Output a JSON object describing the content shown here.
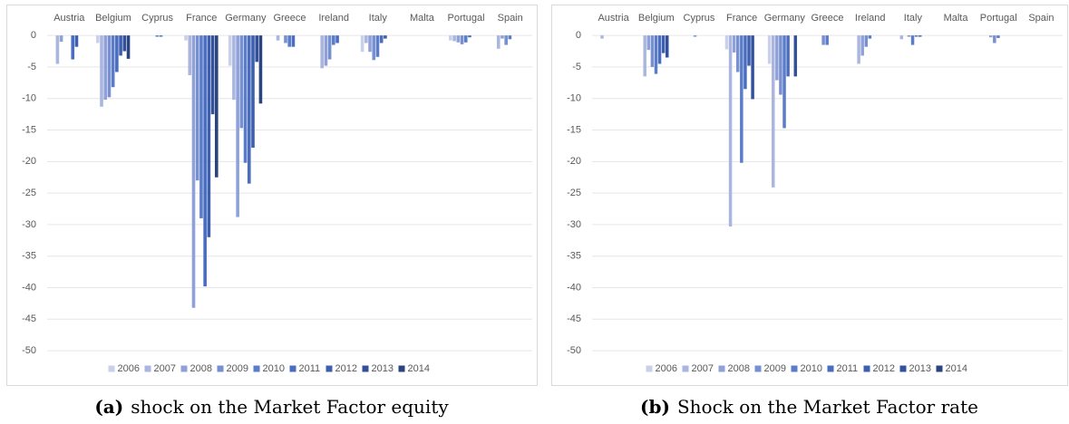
{
  "chart_data": [
    {
      "type": "bar",
      "caption_label": "(a)",
      "caption": "shock on the Market Factor equity",
      "categories": [
        "Austria",
        "Belgium",
        "Cyprus",
        "France",
        "Germany",
        "Greece",
        "Ireland",
        "Italy",
        "Malta",
        "Portugal",
        "Spain"
      ],
      "ylim": [
        -52,
        1.6
      ],
      "yticks": [
        0,
        -5,
        -10,
        -15,
        -20,
        -25,
        -30,
        -35,
        -40,
        -45,
        -50
      ],
      "grid": true,
      "legend": "bottom",
      "series": [
        {
          "name": "2006",
          "color": "#c9d0ea",
          "values": [
            0,
            -1.2,
            0,
            -0.8,
            -4.8,
            0,
            0,
            -2.6,
            0,
            -0.8,
            0
          ]
        },
        {
          "name": "2007",
          "color": "#aab6df",
          "values": [
            -4.5,
            -11.3,
            0,
            -6.3,
            -10.2,
            -0.8,
            -5.2,
            -1.2,
            0,
            -0.9,
            -2.1
          ]
        },
        {
          "name": "2008",
          "color": "#8fa1d6",
          "values": [
            -1,
            -10.2,
            0,
            -43.2,
            -28.8,
            0,
            -4.8,
            -2.6,
            0,
            -1.1,
            -0.5
          ]
        },
        {
          "name": "2009",
          "color": "#7690d1",
          "values": [
            0,
            -9.8,
            0,
            -23,
            -14.7,
            -1.2,
            -3.8,
            -3.9,
            0,
            -1.4,
            -1.5
          ]
        },
        {
          "name": "2010",
          "color": "#5b7cc8",
          "values": [
            0,
            -8.2,
            -0.2,
            -29,
            -20.2,
            -1.8,
            -1.5,
            -3.4,
            0,
            -1.1,
            -0.6
          ]
        },
        {
          "name": "2011",
          "color": "#4a6dbf",
          "values": [
            -3.8,
            -5.8,
            -0.2,
            -39.8,
            -23.5,
            -1.8,
            -1.2,
            -1.2,
            0,
            -0.3,
            0
          ]
        },
        {
          "name": "2012",
          "color": "#3c5fb0",
          "values": [
            -1.8,
            -3.2,
            0,
            -32,
            -17.8,
            0,
            0,
            -0.5,
            0,
            0,
            0
          ]
        },
        {
          "name": "2013",
          "color": "#33519b",
          "values": [
            0,
            -2.5,
            0,
            -12.5,
            -4.2,
            0,
            0,
            0,
            0,
            0,
            0
          ]
        },
        {
          "name": "2014",
          "color": "#2a4480",
          "values": [
            0,
            -3.7,
            0,
            -22.5,
            -10.8,
            0,
            0,
            0,
            0,
            0,
            0
          ]
        }
      ]
    },
    {
      "type": "bar",
      "caption_label": "(b)",
      "caption": "Shock on the Market Factor rate",
      "categories": [
        "Austria",
        "Belgium",
        "Cyprus",
        "France",
        "Germany",
        "Greece",
        "Ireland",
        "Italy",
        "Malta",
        "Portugal",
        "Spain"
      ],
      "ylim": [
        -52,
        1.6
      ],
      "yticks": [
        0,
        -5,
        -10,
        -15,
        -20,
        -25,
        -30,
        -35,
        -40,
        -45,
        -50
      ],
      "grid": true,
      "legend": "bottom",
      "series": [
        {
          "name": "2006",
          "color": "#c9d0ea",
          "values": [
            0,
            0,
            0,
            -2.2,
            -4.5,
            0,
            0,
            0,
            0,
            0,
            0
          ]
        },
        {
          "name": "2007",
          "color": "#aab6df",
          "values": [
            -0.5,
            -6.5,
            0,
            -30.3,
            -24.1,
            0,
            -4.5,
            -0.6,
            0,
            0,
            0
          ]
        },
        {
          "name": "2008",
          "color": "#8fa1d6",
          "values": [
            0,
            -2.3,
            0,
            -2.7,
            -7.1,
            0,
            -3.2,
            0,
            0,
            -0.3,
            0
          ]
        },
        {
          "name": "2009",
          "color": "#7690d1",
          "values": [
            0,
            -5,
            -0.2,
            -5.8,
            -9.4,
            -1.5,
            -1.8,
            -0.2,
            0,
            -1.2,
            0
          ]
        },
        {
          "name": "2010",
          "color": "#5b7cc8",
          "values": [
            0,
            -6.1,
            0,
            -20.2,
            -14.7,
            -1.5,
            -0.5,
            -1.5,
            0,
            -0.4,
            0
          ]
        },
        {
          "name": "2011",
          "color": "#4a6dbf",
          "values": [
            0,
            -4.5,
            0,
            -8.5,
            -6.5,
            0,
            0,
            -0.2,
            0,
            0,
            0
          ]
        },
        {
          "name": "2012",
          "color": "#3c5fb0",
          "values": [
            0,
            -2.8,
            0,
            -4.8,
            0,
            0,
            0,
            -0.2,
            0,
            0,
            0
          ]
        },
        {
          "name": "2013",
          "color": "#33519b",
          "values": [
            0,
            -3.5,
            0,
            -10.1,
            -6.5,
            0,
            0,
            0,
            0,
            0,
            0
          ]
        },
        {
          "name": "2014",
          "color": "#2a4480",
          "values": [
            0,
            0,
            0,
            0,
            0,
            0,
            0,
            0,
            0,
            0,
            0
          ]
        }
      ]
    }
  ]
}
